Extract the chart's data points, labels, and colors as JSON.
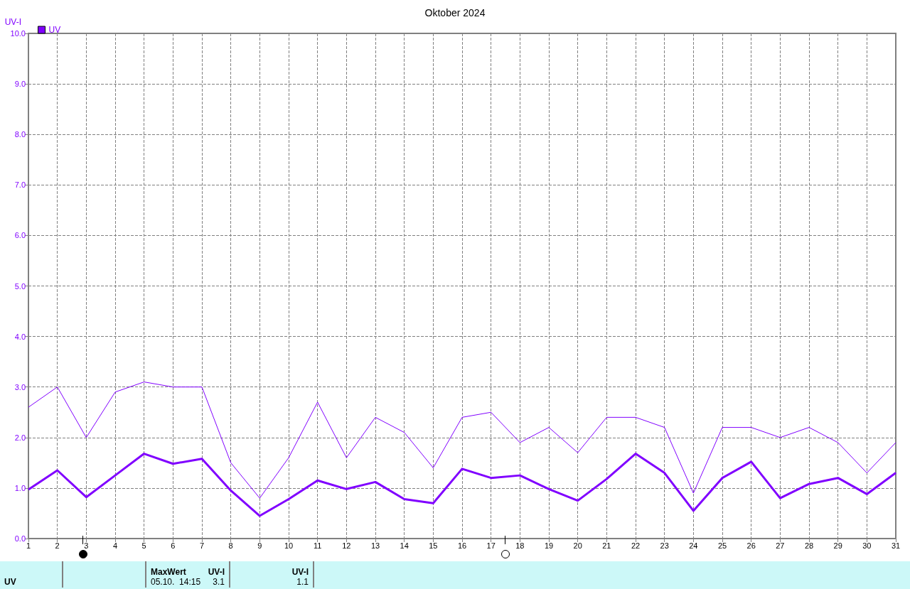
{
  "chart_data": {
    "type": "line",
    "title": "Oktober 2024",
    "ylabel": "UV-I",
    "x": [
      1,
      2,
      3,
      4,
      5,
      6,
      7,
      8,
      9,
      10,
      11,
      12,
      13,
      14,
      15,
      16,
      17,
      18,
      19,
      20,
      21,
      22,
      23,
      24,
      25,
      26,
      27,
      28,
      29,
      30,
      31
    ],
    "series": [
      {
        "color": "#8000ff",
        "values": [
          2.6,
          3.0,
          2.0,
          2.9,
          3.1,
          3.0,
          3.0,
          1.5,
          0.8,
          1.6,
          2.7,
          1.6,
          2.4,
          2.1,
          1.4,
          2.4,
          2.5,
          1.9,
          2.2,
          1.7,
          2.4,
          2.4,
          2.2,
          0.9,
          2.2,
          2.2,
          2.0,
          2.2,
          1.9,
          1.3,
          1.9
        ]
      },
      {
        "name": "UV",
        "color": "#8000ff",
        "values": [
          0.97,
          1.35,
          0.82,
          1.25,
          1.68,
          1.48,
          1.58,
          0.95,
          0.45,
          0.78,
          1.15,
          0.98,
          1.12,
          0.78,
          0.7,
          1.38,
          1.2,
          1.25,
          0.98,
          0.75,
          1.18,
          1.68,
          1.3,
          0.55,
          1.2,
          1.52,
          0.8,
          1.08,
          1.2,
          0.88,
          1.3
        ]
      }
    ],
    "xlim": [
      1,
      31
    ],
    "xticks": [
      1,
      2,
      3,
      4,
      5,
      6,
      7,
      8,
      9,
      10,
      11,
      12,
      13,
      14,
      15,
      16,
      17,
      18,
      19,
      20,
      21,
      22,
      23,
      24,
      25,
      26,
      27,
      28,
      29,
      30,
      31
    ],
    "ylim": [
      0,
      10
    ],
    "yticks": [
      {
        "value": 0,
        "label": "0.0"
      },
      {
        "value": 1,
        "label": "1.0"
      },
      {
        "value": 2,
        "label": "2.0"
      },
      {
        "value": 3,
        "label": "3.0"
      },
      {
        "value": 4,
        "label": "4.0"
      },
      {
        "value": 5,
        "label": "5.0"
      },
      {
        "value": 6,
        "label": "6.0"
      },
      {
        "value": 7,
        "label": "7.0"
      },
      {
        "value": 8,
        "label": "8.0"
      },
      {
        "value": 9,
        "label": "9.0"
      },
      {
        "value": 10,
        "label": "10.0"
      }
    ],
    "grid": true,
    "legend": "top left",
    "marker": "none",
    "line_style": "solid",
    "annotations": [
      "UV",
      "MaxWert",
      "UV-I",
      "05.10.  14:15",
      "3.1",
      "UV-I",
      "1.1"
    ]
  }
}
